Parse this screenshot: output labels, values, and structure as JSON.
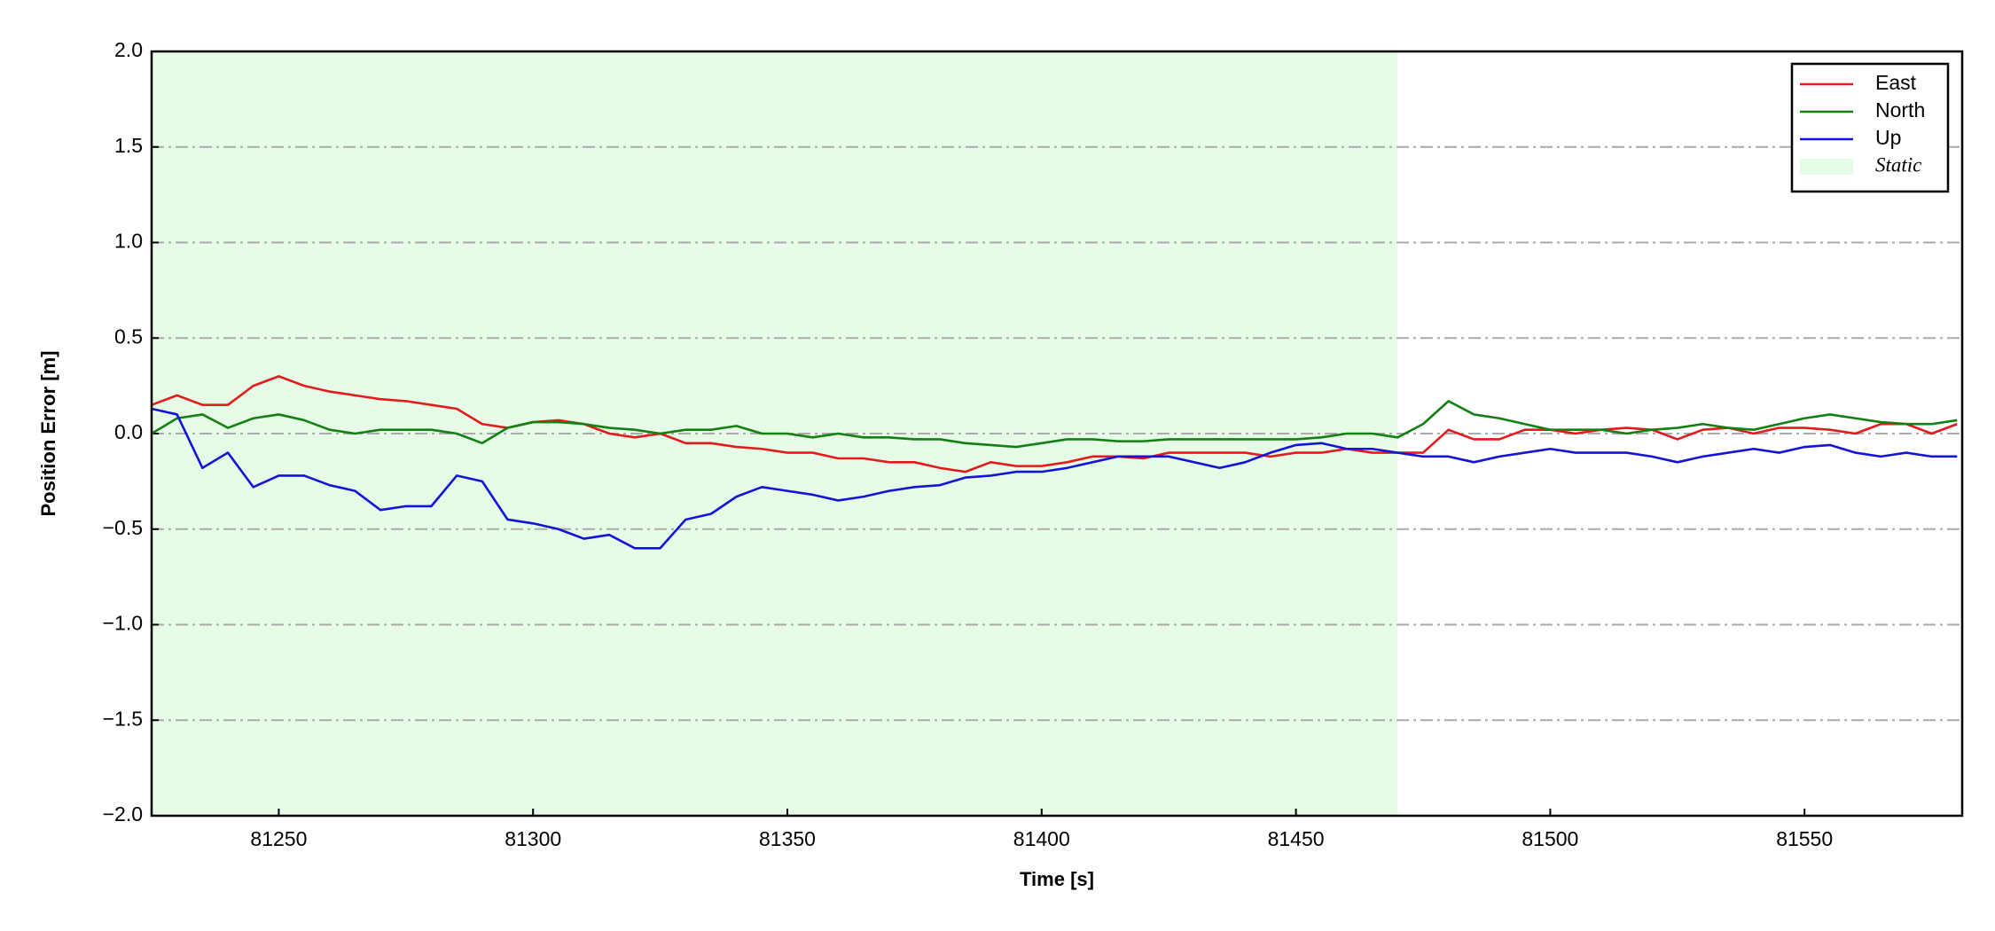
{
  "chart_data": {
    "type": "line",
    "x_label": "Time [s]",
    "y_label": "Position Error [m]",
    "x": [
      81225,
      81230,
      81235,
      81240,
      81245,
      81250,
      81255,
      81260,
      81265,
      81270,
      81275,
      81280,
      81285,
      81290,
      81295,
      81300,
      81305,
      81310,
      81315,
      81320,
      81325,
      81330,
      81335,
      81340,
      81345,
      81350,
      81355,
      81360,
      81365,
      81370,
      81375,
      81380,
      81385,
      81390,
      81395,
      81400,
      81405,
      81410,
      81415,
      81420,
      81425,
      81430,
      81435,
      81440,
      81445,
      81450,
      81455,
      81460,
      81465,
      81470,
      81475,
      81480,
      81485,
      81490,
      81495,
      81500,
      81505,
      81510,
      81515,
      81520,
      81525,
      81530,
      81535,
      81540,
      81545,
      81550,
      81555,
      81560,
      81565,
      81570,
      81575,
      81580
    ],
    "series": [
      {
        "name": "East",
        "color": "#e41a1c",
        "values": [
          0.15,
          0.2,
          0.15,
          0.15,
          0.25,
          0.3,
          0.25,
          0.22,
          0.2,
          0.18,
          0.17,
          0.15,
          0.13,
          0.05,
          0.03,
          0.06,
          0.07,
          0.05,
          0.0,
          -0.02,
          0.0,
          -0.05,
          -0.05,
          -0.07,
          -0.08,
          -0.1,
          -0.1,
          -0.13,
          -0.13,
          -0.15,
          -0.15,
          -0.18,
          -0.2,
          -0.15,
          -0.17,
          -0.17,
          -0.15,
          -0.12,
          -0.12,
          -0.13,
          -0.1,
          -0.1,
          -0.1,
          -0.1,
          -0.12,
          -0.1,
          -0.1,
          -0.08,
          -0.1,
          -0.1,
          -0.1,
          0.02,
          -0.03,
          -0.03,
          0.02,
          0.02,
          0.0,
          0.02,
          0.03,
          0.02,
          -0.03,
          0.02,
          0.03,
          0.0,
          0.03,
          0.03,
          0.02,
          0.0,
          0.05,
          0.05,
          0.0,
          0.05
        ]
      },
      {
        "name": "North",
        "color": "#138013",
        "values": [
          0.0,
          0.08,
          0.1,
          0.03,
          0.08,
          0.1,
          0.07,
          0.02,
          0.0,
          0.02,
          0.02,
          0.02,
          0.0,
          -0.05,
          0.03,
          0.06,
          0.06,
          0.05,
          0.03,
          0.02,
          0.0,
          0.02,
          0.02,
          0.04,
          0.0,
          0.0,
          -0.02,
          0.0,
          -0.02,
          -0.02,
          -0.03,
          -0.03,
          -0.05,
          -0.06,
          -0.07,
          -0.05,
          -0.03,
          -0.03,
          -0.04,
          -0.04,
          -0.03,
          -0.03,
          -0.03,
          -0.03,
          -0.03,
          -0.03,
          -0.02,
          0.0,
          0.0,
          -0.02,
          0.05,
          0.17,
          0.1,
          0.08,
          0.05,
          0.02,
          0.02,
          0.02,
          0.0,
          0.02,
          0.03,
          0.05,
          0.03,
          0.02,
          0.05,
          0.08,
          0.1,
          0.08,
          0.06,
          0.05,
          0.05,
          0.07
        ]
      },
      {
        "name": "Up",
        "color": "#1414d8",
        "values": [
          0.13,
          0.1,
          -0.18,
          -0.1,
          -0.28,
          -0.22,
          -0.22,
          -0.27,
          -0.3,
          -0.4,
          -0.38,
          -0.38,
          -0.22,
          -0.25,
          -0.45,
          -0.47,
          -0.5,
          -0.55,
          -0.53,
          -0.6,
          -0.6,
          -0.45,
          -0.42,
          -0.33,
          -0.28,
          -0.3,
          -0.32,
          -0.35,
          -0.33,
          -0.3,
          -0.28,
          -0.27,
          -0.23,
          -0.22,
          -0.2,
          -0.2,
          -0.18,
          -0.15,
          -0.12,
          -0.12,
          -0.12,
          -0.15,
          -0.18,
          -0.15,
          -0.1,
          -0.06,
          -0.05,
          -0.08,
          -0.08,
          -0.1,
          -0.12,
          -0.12,
          -0.15,
          -0.12,
          -0.1,
          -0.08,
          -0.1,
          -0.1,
          -0.1,
          -0.12,
          -0.15,
          -0.12,
          -0.1,
          -0.08,
          -0.1,
          -0.07,
          -0.06,
          -0.1,
          -0.12,
          -0.1,
          -0.12,
          -0.12
        ]
      }
    ],
    "spans": [
      {
        "name": "Static",
        "color": "#e6fce6",
        "x": [
          81225,
          81470
        ]
      }
    ],
    "xlim": [
      81225,
      81581
    ],
    "ylim": [
      -2,
      2
    ],
    "xticks": [
      81250,
      81300,
      81350,
      81400,
      81450,
      81500,
      81550
    ],
    "yticks": [
      {
        "value": -2,
        "label": "−2.0"
      },
      {
        "value": -1.5,
        "label": "−1.5"
      },
      {
        "value": -1,
        "label": "−1.0"
      },
      {
        "value": -0.5,
        "label": "−0.5"
      },
      {
        "value": 0,
        "label": "0.0"
      },
      {
        "value": 0.5,
        "label": "0.5"
      },
      {
        "value": 1,
        "label": "1.0"
      },
      {
        "value": 1.5,
        "label": "1.5"
      },
      {
        "value": 2,
        "label": "2.0"
      }
    ],
    "grid": "y",
    "legend": "upper right"
  }
}
